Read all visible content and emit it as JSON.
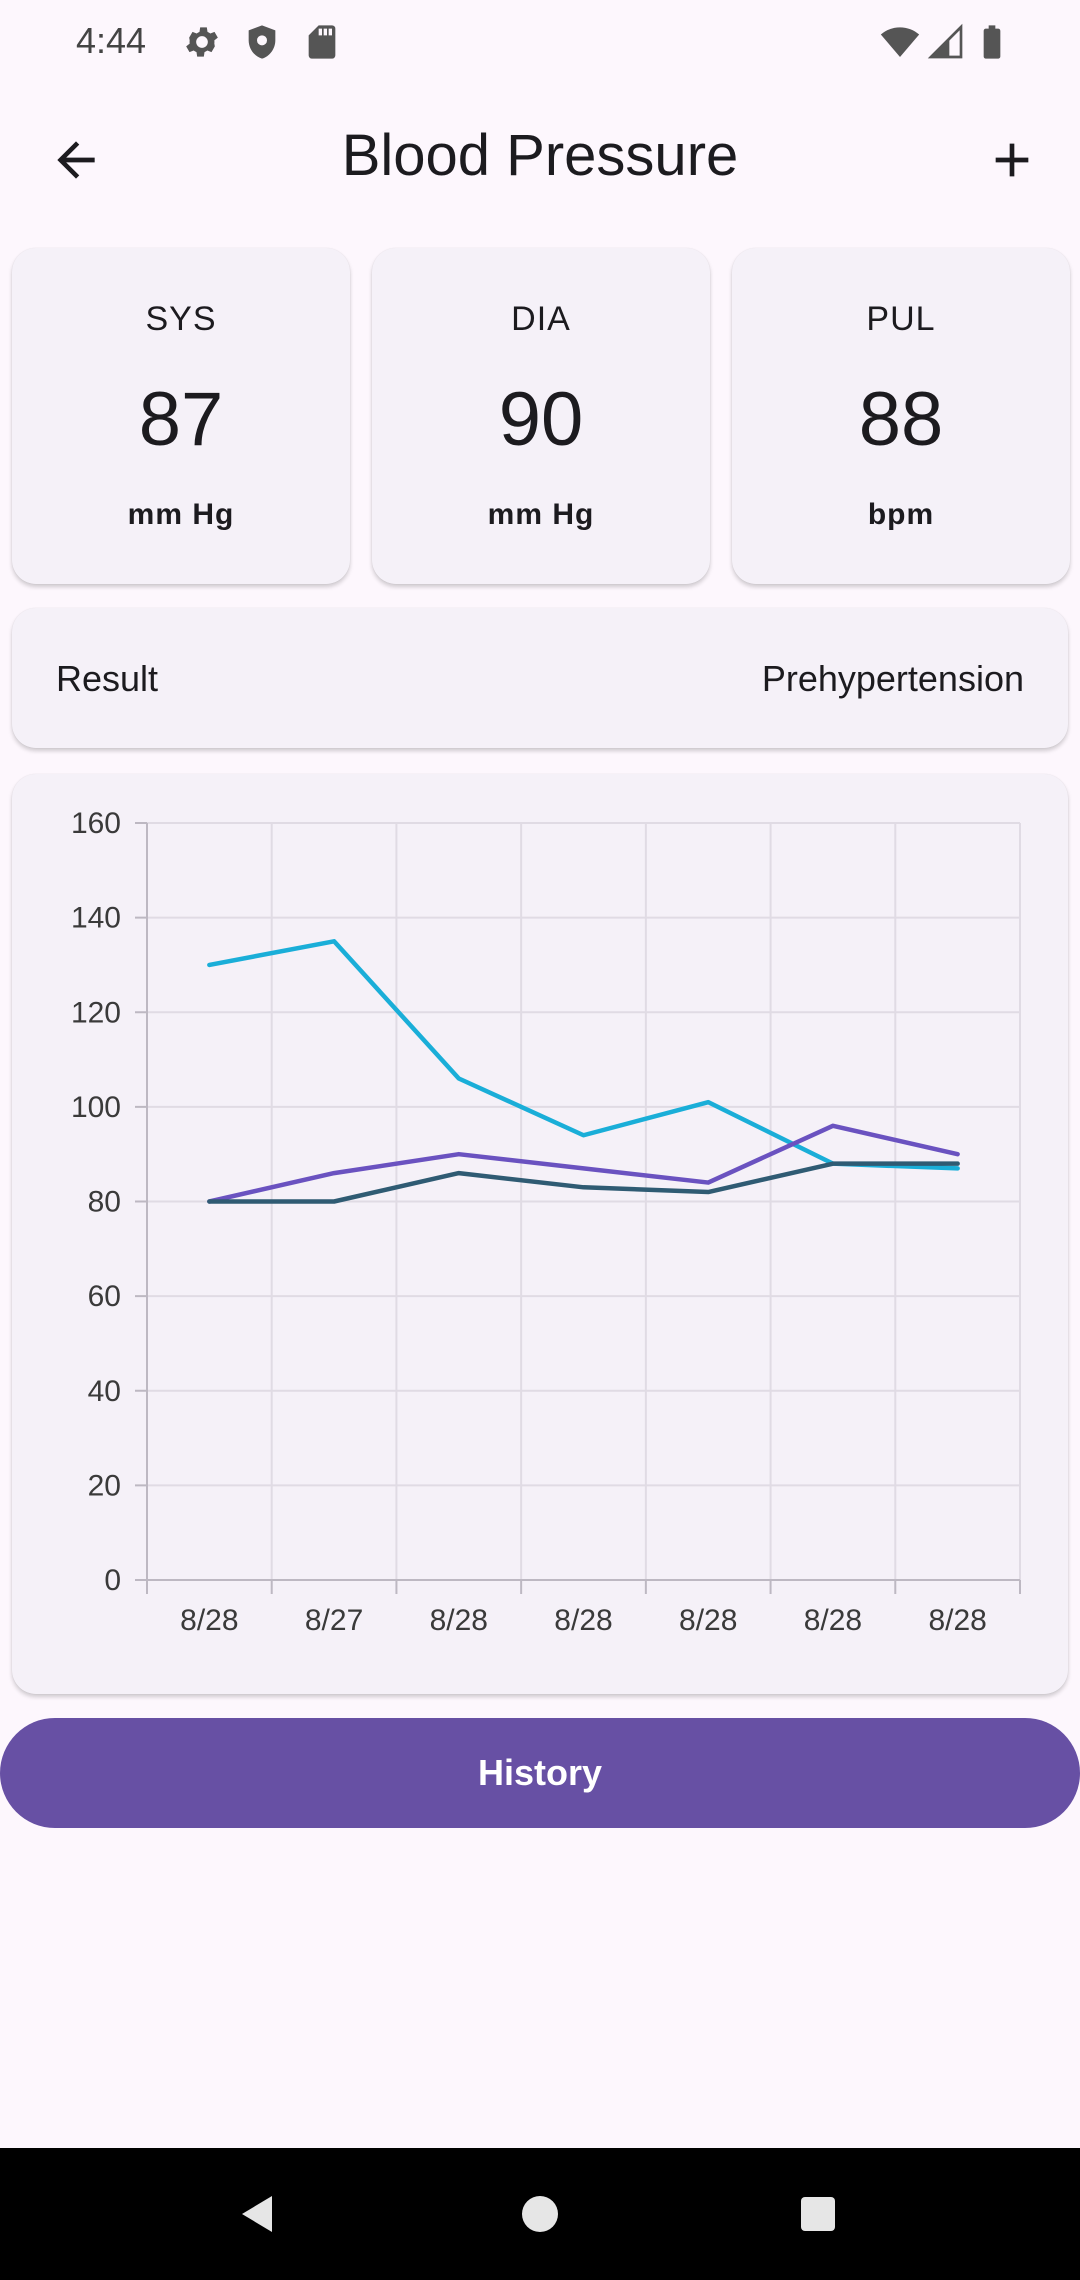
{
  "status_bar": {
    "time": "4:44",
    "left_icons": [
      "gear-icon",
      "shield-icon",
      "sd-card-icon"
    ],
    "right_icons": [
      "wifi-icon",
      "signal-icon",
      "battery-icon"
    ]
  },
  "app_bar": {
    "title": "Blood Pressure",
    "back_icon": "arrow-back-icon",
    "add_icon": "plus-icon"
  },
  "metrics": [
    {
      "label": "SYS",
      "value": "87",
      "unit": "mm Hg"
    },
    {
      "label": "DIA",
      "value": "90",
      "unit": "mm Hg"
    },
    {
      "label": "PUL",
      "value": "88",
      "unit": "bpm"
    }
  ],
  "result": {
    "label": "Result",
    "value": "Prehypertension"
  },
  "chart_data": {
    "type": "line",
    "categories": [
      "8/28",
      "8/27",
      "8/28",
      "8/28",
      "8/28",
      "8/28",
      "8/28"
    ],
    "ylim": [
      0,
      160
    ],
    "yticks": [
      0,
      20,
      40,
      60,
      80,
      100,
      120,
      140,
      160
    ],
    "grid": true,
    "series": [
      {
        "color": "#1aaed8",
        "values": [
          130,
          135,
          106,
          94,
          101,
          88,
          87
        ]
      },
      {
        "color": "#6a52c0",
        "values": [
          80,
          86,
          90,
          87,
          84,
          96,
          90
        ]
      },
      {
        "color": "#2f5b73",
        "values": [
          80,
          80,
          86,
          83,
          82,
          88,
          88
        ]
      }
    ]
  },
  "history_button": {
    "label": "History"
  },
  "nav_bar": {
    "icons": [
      "nav-back-icon",
      "nav-home-icon",
      "nav-recents-icon"
    ]
  },
  "colors": {
    "background": "#fdf7fd",
    "card": "#f5f1f8",
    "primary": "#6750a4"
  }
}
